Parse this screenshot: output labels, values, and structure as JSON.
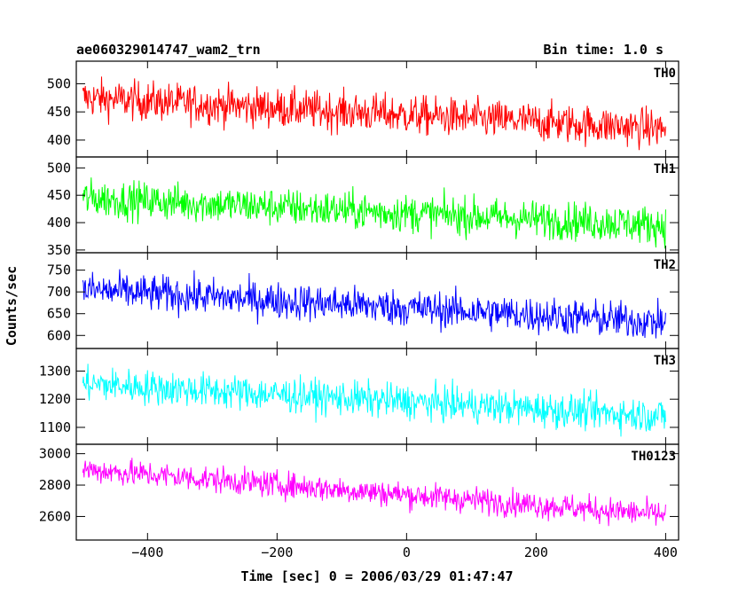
{
  "title_left": "ae060329014747_wam2_trn",
  "title_right": "Bin time: 1.0 s",
  "xlabel": "Time [sec] 0 = 2006/03/29 01:47:47",
  "ylabel": "Counts/sec",
  "chart_data": {
    "type": "line",
    "xlim": [
      -510,
      420
    ],
    "x_ticks": [
      -400,
      -200,
      0,
      200,
      400
    ],
    "x_tick_labels": [
      "−400",
      "−200",
      "0",
      "200",
      "400"
    ],
    "x_range": [
      -500,
      400
    ],
    "bin_time_s": 1.0,
    "panels": [
      {
        "name": "TH0",
        "color": "#ff0000",
        "ylim": [
          370,
          540
        ],
        "y_ticks": [
          400,
          450,
          500
        ],
        "y_tick_labels": [
          "400",
          "450",
          "500"
        ],
        "trend_start": 475,
        "trend_end": 420,
        "noise": 45
      },
      {
        "name": "TH1",
        "color": "#00ff00",
        "ylim": [
          345,
          520
        ],
        "y_ticks": [
          350,
          400,
          450,
          500
        ],
        "y_tick_labels": [
          "350",
          "400",
          "450",
          "500"
        ],
        "trend_start": 445,
        "trend_end": 395,
        "noise": 45
      },
      {
        "name": "TH2",
        "color": "#0000ff",
        "ylim": [
          570,
          790
        ],
        "y_ticks": [
          600,
          650,
          700,
          750
        ],
        "y_tick_labels": [
          "600",
          "650",
          "700",
          "750"
        ],
        "trend_start": 705,
        "trend_end": 630,
        "noise": 55
      },
      {
        "name": "TH3",
        "color": "#00ffff",
        "ylim": [
          1040,
          1380
        ],
        "y_ticks": [
          1100,
          1200,
          1300
        ],
        "y_tick_labels": [
          "1100",
          "1200",
          "1300"
        ],
        "trend_start": 1255,
        "trend_end": 1140,
        "noise": 80
      },
      {
        "name": "TH0123",
        "color": "#ff00ff",
        "ylim": [
          2450,
          3060
        ],
        "y_ticks": [
          2600,
          2800,
          3000
        ],
        "y_tick_labels": [
          "2600",
          "2800",
          "3000"
        ],
        "trend_start": 2900,
        "trend_end": 2610,
        "noise": 110
      }
    ]
  }
}
